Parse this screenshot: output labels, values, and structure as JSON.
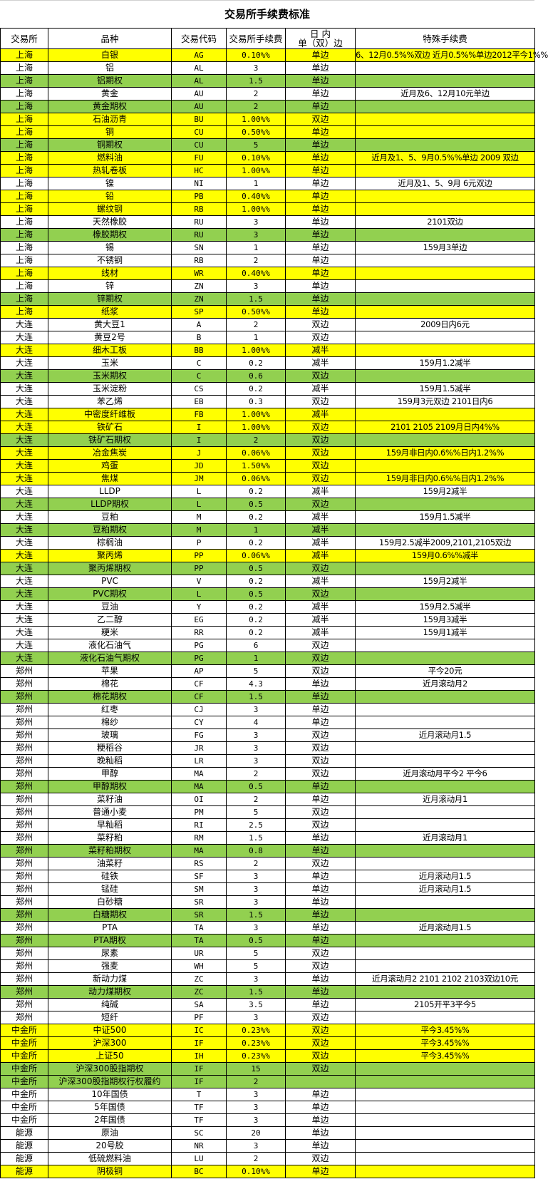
{
  "title": "交易所手续费标准",
  "colors": {
    "yellow": "#FFFF00",
    "green": "#92D050"
  },
  "headers": [
    "交易所",
    "品种",
    "交易代码",
    "交易所手续费",
    "日 内",
    "单（双）边",
    "特殊手续费"
  ],
  "rows": [
    [
      "上海",
      "白银",
      "AG",
      "0.10%%",
      "单边",
      "6、12月0.5%%双边 近月0.5%%单边2012平今1%%",
      "yellow"
    ],
    [
      "上海",
      "铝",
      "AL",
      "3",
      "单边",
      "",
      "none"
    ],
    [
      "上海",
      "铝期权",
      "AL",
      "1.5",
      "单边",
      "",
      "green"
    ],
    [
      "上海",
      "黄金",
      "AU",
      "2",
      "单边",
      "近月及6、12月10元单边",
      "none"
    ],
    [
      "上海",
      "黄金期权",
      "AU",
      "2",
      "单边",
      "",
      "green"
    ],
    [
      "上海",
      "石油沥青",
      "BU",
      "1.00%%",
      "双边",
      "",
      "yellow"
    ],
    [
      "上海",
      "铜",
      "CU",
      "0.50%%",
      "单边",
      "",
      "yellow"
    ],
    [
      "上海",
      "铜期权",
      "CU",
      "5",
      "单边",
      "",
      "green"
    ],
    [
      "上海",
      "燃料油",
      "FU",
      "0.10%%",
      "单边",
      "近月及1、5、9月0.5%%单边 2009 双边",
      "yellow"
    ],
    [
      "上海",
      "热轧卷板",
      "HC",
      "1.00%%",
      "单边",
      "",
      "yellow"
    ],
    [
      "上海",
      "镍",
      "NI",
      "1",
      "单边",
      "近月及1、5、9月 6元双边",
      "none"
    ],
    [
      "上海",
      "铅",
      "PB",
      "0.40%%",
      "单边",
      "",
      "yellow"
    ],
    [
      "上海",
      "螺纹钢",
      "RB",
      "1.00%%",
      "单边",
      "",
      "yellow"
    ],
    [
      "上海",
      "天然橡胶",
      "RU",
      "3",
      "单边",
      "2101双边",
      "none"
    ],
    [
      "上海",
      "橡胶期权",
      "RU",
      "3",
      "单边",
      "",
      "green"
    ],
    [
      "上海",
      "锡",
      "SN",
      "1",
      "单边",
      "159月3单边",
      "none"
    ],
    [
      "上海",
      "不锈钢",
      "RB",
      "2",
      "单边",
      "",
      "none"
    ],
    [
      "上海",
      "线材",
      "WR",
      "0.40%%",
      "单边",
      "",
      "yellow"
    ],
    [
      "上海",
      "锌",
      "ZN",
      "3",
      "单边",
      "",
      "none"
    ],
    [
      "上海",
      "锌期权",
      "ZN",
      "1.5",
      "单边",
      "",
      "green"
    ],
    [
      "上海",
      "纸浆",
      "SP",
      "0.50%%",
      "单边",
      "",
      "yellow"
    ],
    [
      "大连",
      "黄大豆1",
      "A",
      "2",
      "双边",
      "2009日内6元",
      "none"
    ],
    [
      "大连",
      "黄豆2号",
      "B",
      "1",
      "双边",
      "",
      "none"
    ],
    [
      "大连",
      "细木工板",
      "BB",
      "1.00%%",
      "减半",
      "",
      "yellow"
    ],
    [
      "大连",
      "玉米",
      "C",
      "0.2",
      "减半",
      "159月1.2减半",
      "none"
    ],
    [
      "大连",
      "玉米期权",
      "C",
      "0.6",
      "双边",
      "",
      "green"
    ],
    [
      "大连",
      "玉米淀粉",
      "CS",
      "0.2",
      "减半",
      "159月1.5减半",
      "none"
    ],
    [
      "大连",
      "苯乙烯",
      "EB",
      "0.3",
      "双边",
      "159月3元双边 2101日内6",
      "none"
    ],
    [
      "大连",
      "中密度纤维板",
      "FB",
      "1.00%%",
      "减半",
      "",
      "yellow"
    ],
    [
      "大连",
      "铁矿石",
      "I",
      "1.00%%",
      "双边",
      "2101 2105 2109月日内4%%",
      "yellow"
    ],
    [
      "大连",
      "铁矿石期权",
      "I",
      "2",
      "双边",
      "",
      "green"
    ],
    [
      "大连",
      "冶金焦炭",
      "J",
      "0.06%%",
      "双边",
      "159月非日内0.6%%日内1.2%%",
      "yellow"
    ],
    [
      "大连",
      "鸡蛋",
      "JD",
      "1.50%%",
      "双边",
      "",
      "yellow"
    ],
    [
      "大连",
      "焦煤",
      "JM",
      "0.06%%",
      "双边",
      "159月非日内0.6%%日内1.2%%",
      "yellow"
    ],
    [
      "大连",
      "LLDP",
      "L",
      "0.2",
      "减半",
      "159月2减半",
      "none"
    ],
    [
      "大连",
      "LLDP期权",
      "L",
      "0.5",
      "双边",
      "",
      "green"
    ],
    [
      "大连",
      "豆粕",
      "M",
      "0.2",
      "减半",
      "159月1.5减半",
      "none"
    ],
    [
      "大连",
      "豆粕期权",
      "M",
      "1",
      "减半",
      "",
      "green"
    ],
    [
      "大连",
      "棕榈油",
      "P",
      "0.2",
      "减半",
      "159月2.5减半2009,2101,2105双边",
      "none"
    ],
    [
      "大连",
      "聚丙烯",
      "PP",
      "0.06%%",
      "减半",
      "159月0.6%%减半",
      "yellow"
    ],
    [
      "大连",
      "聚丙烯期权",
      "PP",
      "0.5",
      "双边",
      "",
      "green"
    ],
    [
      "大连",
      "PVC",
      "V",
      "0.2",
      "减半",
      "159月2减半",
      "none"
    ],
    [
      "大连",
      "PVC期权",
      "L",
      "0.5",
      "双边",
      "",
      "green"
    ],
    [
      "大连",
      "豆油",
      "Y",
      "0.2",
      "减半",
      "159月2.5减半",
      "none"
    ],
    [
      "大连",
      "乙二醇",
      "EG",
      "0.2",
      "减半",
      "159月3减半",
      "none"
    ],
    [
      "大连",
      "粳米",
      "RR",
      "0.2",
      "减半",
      "159月1减半",
      "none"
    ],
    [
      "大连",
      "液化石油气",
      "PG",
      "6",
      "双边",
      "",
      "none"
    ],
    [
      "大连",
      "液化石油气期权",
      "PG",
      "1",
      "双边",
      "",
      "green"
    ],
    [
      "郑州",
      "苹果",
      "AP",
      "5",
      "双边",
      "平今20元",
      "none"
    ],
    [
      "郑州",
      "棉花",
      "CF",
      "4.3",
      "单边",
      "近月滚动月2",
      "none"
    ],
    [
      "郑州",
      "棉花期权",
      "CF",
      "1.5",
      "单边",
      "",
      "green"
    ],
    [
      "郑州",
      "红枣",
      "CJ",
      "3",
      "单边",
      "",
      "none"
    ],
    [
      "郑州",
      "棉纱",
      "CY",
      "4",
      "单边",
      "",
      "none"
    ],
    [
      "郑州",
      "玻璃",
      "FG",
      "3",
      "双边",
      "近月滚动月1.5",
      "none"
    ],
    [
      "郑州",
      "粳稻谷",
      "JR",
      "3",
      "双边",
      "",
      "none"
    ],
    [
      "郑州",
      "晚籼稻",
      "LR",
      "3",
      "双边",
      "",
      "none"
    ],
    [
      "郑州",
      "甲醇",
      "MA",
      "2",
      "双边",
      "近月滚动月平今2 平今6",
      "none"
    ],
    [
      "郑州",
      "甲醇期权",
      "MA",
      "0.5",
      "单边",
      "",
      "green"
    ],
    [
      "郑州",
      "菜籽油",
      "OI",
      "2",
      "单边",
      "近月滚动月1",
      "none"
    ],
    [
      "郑州",
      "普通小麦",
      "PM",
      "5",
      "双边",
      "",
      "none"
    ],
    [
      "郑州",
      "早籼稻",
      "RI",
      "2.5",
      "双边",
      "",
      "none"
    ],
    [
      "郑州",
      "菜籽粕",
      "RM",
      "1.5",
      "单边",
      "近月滚动月1",
      "none"
    ],
    [
      "郑州",
      "菜籽粕期权",
      "MA",
      "0.8",
      "单边",
      "",
      "green"
    ],
    [
      "郑州",
      "油菜籽",
      "RS",
      "2",
      "双边",
      "",
      "none"
    ],
    [
      "郑州",
      "硅铁",
      "SF",
      "3",
      "单边",
      "近月滚动月1.5",
      "none"
    ],
    [
      "郑州",
      "锰硅",
      "SM",
      "3",
      "单边",
      "近月滚动月1.5",
      "none"
    ],
    [
      "郑州",
      "白砂糖",
      "SR",
      "3",
      "单边",
      "",
      "none"
    ],
    [
      "郑州",
      "白糖期权",
      "SR",
      "1.5",
      "单边",
      "",
      "green"
    ],
    [
      "郑州",
      "PTA",
      "TA",
      "3",
      "单边",
      "近月滚动月1.5",
      "none"
    ],
    [
      "郑州",
      "PTA期权",
      "TA",
      "0.5",
      "单边",
      "",
      "green"
    ],
    [
      "郑州",
      "尿素",
      "UR",
      "5",
      "双边",
      "",
      "none"
    ],
    [
      "郑州",
      "强麦",
      "WH",
      "5",
      "双边",
      "",
      "none"
    ],
    [
      "郑州",
      "新动力煤",
      "ZC",
      "3",
      "单边",
      "近月滚动月2  2101 2102 2103双边10元",
      "none"
    ],
    [
      "郑州",
      "动力煤期权",
      "ZC",
      "1.5",
      "单边",
      "",
      "green"
    ],
    [
      "郑州",
      "纯碱",
      "SA",
      "3.5",
      "单边",
      "2105开平3平今5",
      "none"
    ],
    [
      "郑州",
      "短纤",
      "PF",
      "3",
      "双边",
      "",
      "none"
    ],
    [
      "中金所",
      "中证500",
      "IC",
      "0.23%%",
      "双边",
      "平今3.45%%",
      "yellow"
    ],
    [
      "中金所",
      "沪深300",
      "IF",
      "0.23%%",
      "双边",
      "平今3.45%%",
      "yellow"
    ],
    [
      "中金所",
      "上证50",
      "IH",
      "0.23%%",
      "双边",
      "平今3.45%%",
      "yellow"
    ],
    [
      "中金所",
      "沪深300股指期权",
      "IF",
      "15",
      "双边",
      "",
      "green"
    ],
    [
      "中金所",
      "沪深300股指期权行权履约",
      "IF",
      "2",
      "",
      "",
      "green"
    ],
    [
      "中金所",
      "10年国债",
      "T",
      "3",
      "单边",
      "",
      "none"
    ],
    [
      "中金所",
      "5年国债",
      "TF",
      "3",
      "单边",
      "",
      "none"
    ],
    [
      "中金所",
      "2年国债",
      "TF",
      "3",
      "单边",
      "",
      "none"
    ],
    [
      "能源",
      "原油",
      "SC",
      "20",
      "单边",
      "",
      "none"
    ],
    [
      "能源",
      "20号胶",
      "NR",
      "3",
      "单边",
      "",
      "none"
    ],
    [
      "能源",
      "低硫燃料油",
      "LU",
      "2",
      "双边",
      "",
      "none"
    ],
    [
      "能源",
      "阴极铜",
      "BC",
      "0.10%%",
      "单边",
      "",
      "yellow"
    ]
  ]
}
